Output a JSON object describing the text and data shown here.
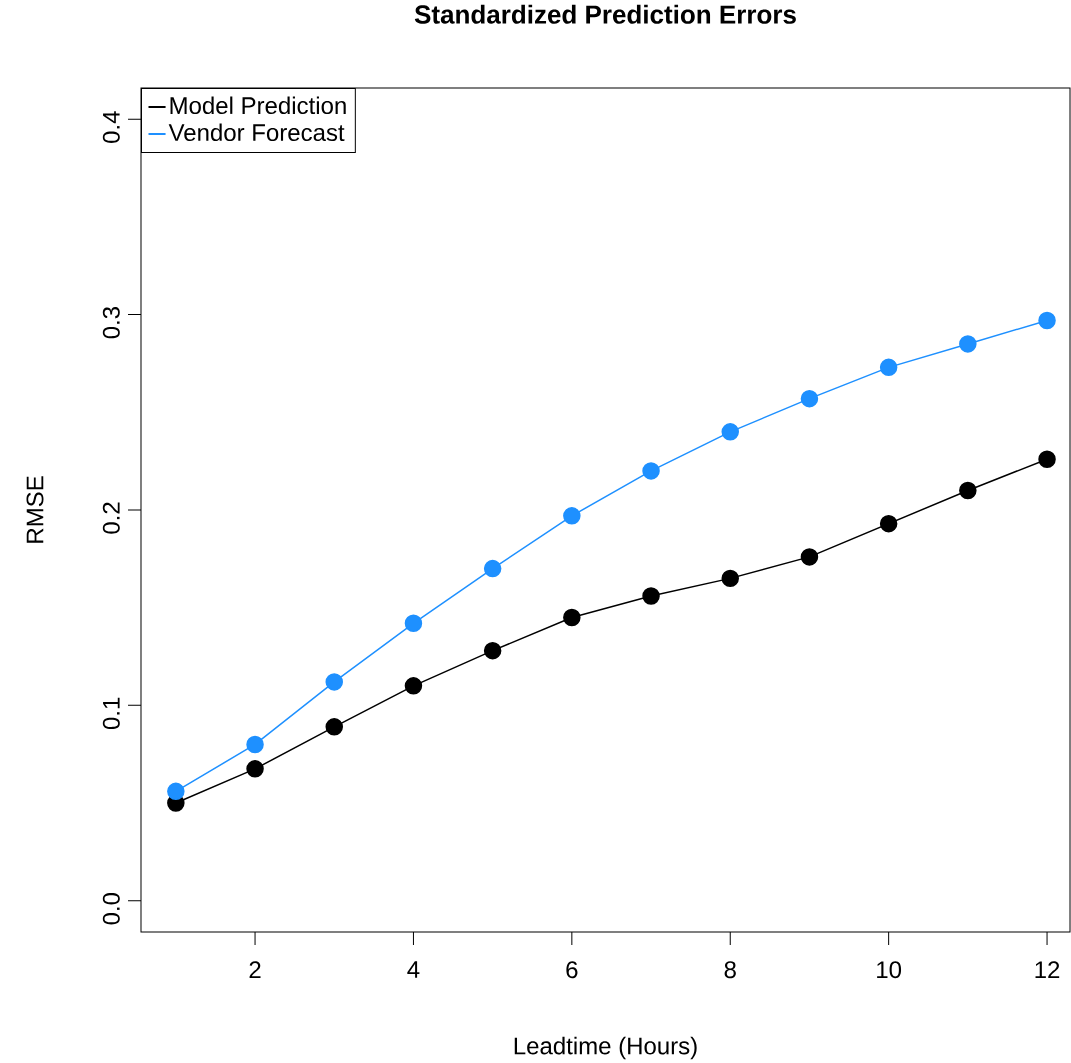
{
  "chart_data": {
    "type": "line",
    "title": "Standardized Prediction Errors",
    "xlabel": "Leadtime (Hours)",
    "ylabel": "RMSE",
    "x": [
      1,
      2,
      3,
      4,
      5,
      6,
      7,
      8,
      9,
      10,
      11,
      12
    ],
    "series": [
      {
        "name": "Model Prediction",
        "color": "#000000",
        "values": [
          0.05,
          0.0675,
          0.089,
          0.11,
          0.128,
          0.145,
          0.156,
          0.165,
          0.176,
          0.193,
          0.21,
          0.226
        ]
      },
      {
        "name": "Vendor Forecast",
        "color": "#1e90ff",
        "values": [
          0.056,
          0.08,
          0.112,
          0.142,
          0.17,
          0.197,
          0.22,
          0.24,
          0.257,
          0.273,
          0.285,
          0.297
        ]
      }
    ],
    "xlim": [
      0.56,
      12.29
    ],
    "ylim": [
      -0.016,
      0.416
    ],
    "xticks": [
      2,
      4,
      6,
      8,
      10,
      12
    ],
    "yticks": [
      {
        "value": 0,
        "label": "0.0"
      },
      {
        "value": 0.1,
        "label": "0.1"
      },
      {
        "value": 0.2,
        "label": "0.2"
      },
      {
        "value": 0.3,
        "label": "0.3"
      },
      {
        "value": 0.4,
        "label": "0.4"
      }
    ],
    "legend": "top left",
    "marker": "circle",
    "line_style": "solid",
    "grid": false
  }
}
